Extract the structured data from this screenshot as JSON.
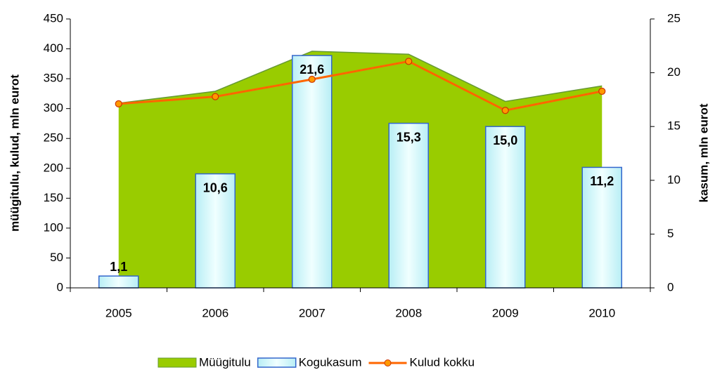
{
  "chart_data": {
    "type": "combo",
    "ylabel": "müügitulu, kulud, mln eurot",
    "y2label": "kasum, mln eurot",
    "categories": [
      "2005",
      "2006",
      "2007",
      "2008",
      "2009",
      "2010"
    ],
    "ylim": [
      0,
      450
    ],
    "yticks": [
      0,
      50,
      100,
      150,
      200,
      250,
      300,
      350,
      400,
      450
    ],
    "y2lim": [
      0,
      25
    ],
    "y2ticks": [
      0,
      5,
      10,
      15,
      20,
      25
    ],
    "series": [
      {
        "name": "Müügitulu",
        "type": "area",
        "color": "#99cc00",
        "values": [
          309,
          329,
          396,
          391,
          312,
          338
        ]
      },
      {
        "name": "Kogukasum",
        "type": "bar",
        "axis": "y2",
        "color": "#3366cc",
        "values": [
          1.1,
          10.6,
          21.6,
          15.3,
          15.0,
          11.2
        ],
        "value_labels": [
          "1,1",
          "10,6",
          "21,6",
          "15,3",
          "15,0",
          "11,2"
        ]
      },
      {
        "name": "Kulud kokku",
        "type": "line",
        "color": "#ff6600",
        "values": [
          308,
          320,
          349,
          379,
          297,
          329
        ]
      }
    ]
  }
}
